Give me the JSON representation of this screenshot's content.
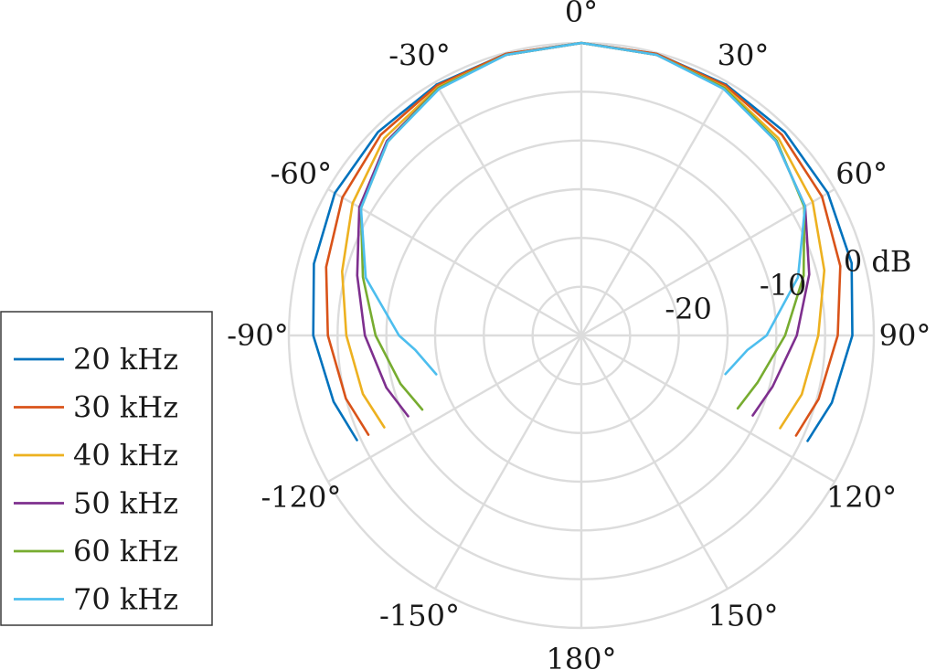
{
  "chart_data": {
    "type": "line",
    "projection": "polar",
    "theta_zero": "top",
    "theta_direction": "clockwise",
    "r_min_db": -30,
    "r_max_db": 0,
    "grid": true,
    "legend_position": "left",
    "angle_ticks": [
      {
        "deg": 0,
        "label": "0°"
      },
      {
        "deg": 30,
        "label": "30°"
      },
      {
        "deg": 60,
        "label": "60°"
      },
      {
        "deg": 90,
        "label": "90°"
      },
      {
        "deg": 120,
        "label": "120°"
      },
      {
        "deg": 150,
        "label": "150°"
      },
      {
        "deg": 180,
        "label": "180°"
      },
      {
        "deg": -150,
        "label": "-150°"
      },
      {
        "deg": -120,
        "label": "-120°"
      },
      {
        "deg": -90,
        "label": "-90°"
      },
      {
        "deg": -60,
        "label": "-60°"
      },
      {
        "deg": -30,
        "label": "-30°"
      }
    ],
    "radial_ticks": [
      {
        "value": 0,
        "label": "0 dB"
      },
      {
        "value": -10,
        "label": "-10"
      },
      {
        "value": -20,
        "label": "-20"
      }
    ],
    "series": [
      {
        "name": "20 kHz",
        "color": "#0072BD",
        "points": [
          [
            -115,
            -4.6
          ],
          [
            -105,
            -3.7
          ],
          [
            -90,
            -2.5
          ],
          [
            -75,
            -1.6
          ],
          [
            -60,
            -0.8
          ],
          [
            -45,
            -0.5
          ],
          [
            -30,
            -0.3
          ],
          [
            -15,
            -0.1
          ],
          [
            0,
            0
          ],
          [
            15,
            -0.1
          ],
          [
            30,
            -0.3
          ],
          [
            45,
            -0.5
          ],
          [
            60,
            -0.8
          ],
          [
            75,
            -1.3
          ],
          [
            90,
            -2.2
          ],
          [
            105,
            -3.4
          ],
          [
            115,
            -4.4
          ]
        ]
      },
      {
        "name": "30 kHz",
        "color": "#D95319",
        "points": [
          [
            -115,
            -5.9
          ],
          [
            -105,
            -5.0
          ],
          [
            -90,
            -4.0
          ],
          [
            -75,
            -2.9
          ],
          [
            -60,
            -1.7
          ],
          [
            -45,
            -0.9
          ],
          [
            -30,
            -0.4
          ],
          [
            -15,
            -0.1
          ],
          [
            0,
            0
          ],
          [
            15,
            -0.1
          ],
          [
            30,
            -0.4
          ],
          [
            45,
            -0.9
          ],
          [
            60,
            -1.5
          ],
          [
            75,
            -2.5
          ],
          [
            90,
            -3.7
          ],
          [
            105,
            -4.8
          ],
          [
            115,
            -5.7
          ]
        ]
      },
      {
        "name": "40 kHz",
        "color": "#EDB120",
        "points": [
          [
            -115,
            -7.7
          ],
          [
            -105,
            -6.8
          ],
          [
            -90,
            -5.9
          ],
          [
            -75,
            -4.6
          ],
          [
            -60,
            -2.9
          ],
          [
            -45,
            -1.4
          ],
          [
            -30,
            -0.6
          ],
          [
            -15,
            -0.2
          ],
          [
            0,
            0
          ],
          [
            15,
            -0.2
          ],
          [
            30,
            -0.6
          ],
          [
            45,
            -1.4
          ],
          [
            60,
            -2.6
          ],
          [
            75,
            -4.2
          ],
          [
            90,
            -5.7
          ],
          [
            105,
            -6.6
          ],
          [
            115,
            -7.5
          ]
        ]
      },
      {
        "name": "50 kHz",
        "color": "#7E2F8E",
        "points": [
          [
            -115,
            -10.4
          ],
          [
            -105,
            -9.3
          ],
          [
            -90,
            -7.8
          ],
          [
            -75,
            -6.2
          ],
          [
            -60,
            -3.7
          ],
          [
            -45,
            -1.8
          ],
          [
            -30,
            -0.7
          ],
          [
            -15,
            -0.2
          ],
          [
            0,
            0
          ],
          [
            15,
            -0.2
          ],
          [
            30,
            -0.7
          ],
          [
            45,
            -1.8
          ],
          [
            60,
            -3.5
          ],
          [
            75,
            -5.8
          ],
          [
            90,
            -7.9
          ],
          [
            105,
            -9.7
          ],
          [
            115,
            -10.6
          ]
        ]
      },
      {
        "name": "60 kHz",
        "color": "#77AC30",
        "points": [
          [
            -115,
            -12.0
          ],
          [
            -105,
            -10.8
          ],
          [
            -90,
            -8.9
          ],
          [
            -75,
            -6.8
          ],
          [
            -60,
            -3.9
          ],
          [
            -45,
            -1.9
          ],
          [
            -30,
            -0.7
          ],
          [
            -15,
            -0.2
          ],
          [
            0,
            0
          ],
          [
            15,
            -0.2
          ],
          [
            30,
            -0.7
          ],
          [
            45,
            -1.7
          ],
          [
            60,
            -3.6
          ],
          [
            75,
            -6.4
          ],
          [
            90,
            -9.1
          ],
          [
            105,
            -11.3
          ],
          [
            115,
            -12.3
          ]
        ]
      },
      {
        "name": "70 kHz",
        "color": "#4DBEEE",
        "points": [
          [
            -105,
            -14.6
          ],
          [
            -95,
            -12.9
          ],
          [
            -90,
            -11.3
          ],
          [
            -75,
            -7.1
          ],
          [
            -60,
            -3.9
          ],
          [
            -45,
            -1.9
          ],
          [
            -30,
            -0.8
          ],
          [
            -15,
            -0.2
          ],
          [
            0,
            0
          ],
          [
            15,
            -0.2
          ],
          [
            30,
            -0.8
          ],
          [
            45,
            -1.8
          ],
          [
            60,
            -3.5
          ],
          [
            75,
            -7.0
          ],
          [
            90,
            -11.0
          ],
          [
            95,
            -12.9
          ],
          [
            105,
            -14.7
          ]
        ]
      }
    ]
  }
}
